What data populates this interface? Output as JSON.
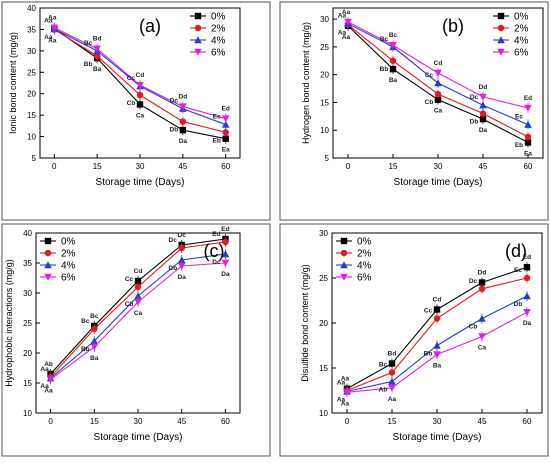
{
  "chart_data": [
    {
      "type": "line",
      "panel_label": "(a)",
      "xlabel": "Storage time (Days)",
      "ylabel": "Ionic bond content (mg/g)",
      "x": [
        0,
        15,
        30,
        45,
        60
      ],
      "xticks": [
        "0",
        "15",
        "30",
        "45",
        "60"
      ],
      "ylim": [
        5,
        40
      ],
      "yticks": [
        5,
        10,
        15,
        20,
        25,
        30,
        35,
        40
      ],
      "legend_position": "top-right",
      "series": [
        {
          "name": "0%",
          "values": [
            35.2,
            28.3,
            17.5,
            11.5,
            9.5
          ],
          "labels": [
            "Aa",
            "Ba",
            "Ca",
            "Da",
            "Ea"
          ]
        },
        {
          "name": "2%",
          "values": [
            35.0,
            28.8,
            19.7,
            13.5,
            11.0
          ],
          "labels": [
            "Aa",
            "Bb",
            "Cb",
            "Db",
            "Eb"
          ]
        },
        {
          "name": "4%",
          "values": [
            35.1,
            30.0,
            21.8,
            16.5,
            12.8
          ],
          "labels": [
            "Aa",
            "Bc",
            "Cc",
            "Dc",
            "Ec"
          ]
        },
        {
          "name": "6%",
          "values": [
            35.4,
            30.5,
            22.0,
            17.0,
            14.2
          ],
          "labels": [
            "Aa",
            "Bd",
            "Cd",
            "Dd",
            "Ed"
          ]
        }
      ]
    },
    {
      "type": "line",
      "panel_label": "(b)",
      "xlabel": "Storage time (Days)",
      "ylabel": "Hydrogen bond content (mg/g)",
      "x": [
        0,
        15,
        30,
        45,
        60
      ],
      "xticks": [
        "0",
        "15",
        "30",
        "45",
        "60"
      ],
      "ylim": [
        5,
        32
      ],
      "yticks": [
        5,
        10,
        15,
        20,
        25,
        30
      ],
      "legend_position": "top-right",
      "series": [
        {
          "name": "0%",
          "values": [
            28.8,
            21.0,
            15.5,
            12.0,
            7.8
          ],
          "labels": [
            "Aa",
            "Ba",
            "Ca",
            "Da",
            "Ea"
          ]
        },
        {
          "name": "2%",
          "values": [
            29.0,
            22.5,
            16.5,
            13.0,
            8.8
          ],
          "labels": [
            "Aa",
            "Bb",
            "Cb",
            "Db",
            "Eb"
          ]
        },
        {
          "name": "4%",
          "values": [
            29.2,
            25.0,
            18.5,
            14.5,
            11.0
          ],
          "labels": [
            "Aa",
            "Bc",
            "Cc",
            "Dc",
            "Ec"
          ]
        },
        {
          "name": "6%",
          "values": [
            29.5,
            25.3,
            20.3,
            16.0,
            14.0
          ],
          "labels": [
            "Aa",
            "Bc",
            "Cd",
            "Dd",
            "Ed"
          ]
        }
      ]
    },
    {
      "type": "line",
      "panel_label": "(c)",
      "xlabel": "Storage time (Days)",
      "ylabel": "Hydrophobic interactions (mg/g)",
      "x": [
        0,
        15,
        30,
        45,
        60
      ],
      "xticks": [
        "0",
        "15",
        "30",
        "45",
        "60"
      ],
      "ylim": [
        10,
        40
      ],
      "yticks": [
        10,
        15,
        20,
        25,
        30,
        35,
        40
      ],
      "legend_position": "top-left",
      "series": [
        {
          "name": "0%",
          "values": [
            16.5,
            24.5,
            32.0,
            38.0,
            39.0
          ],
          "labels": [
            "Ab",
            "Bc",
            "Cd",
            "Dc",
            "Ed"
          ]
        },
        {
          "name": "2%",
          "values": [
            16.0,
            24.0,
            31.0,
            37.5,
            38.5
          ],
          "labels": [
            "Aa",
            "Bc",
            "Cc",
            "Dc",
            "Ed"
          ]
        },
        {
          "name": "4%",
          "values": [
            15.8,
            22.0,
            29.5,
            35.5,
            36.5
          ],
          "labels": [
            "Aa",
            "Bb",
            "Cb",
            "Db",
            "Dc"
          ]
        },
        {
          "name": "6%",
          "values": [
            15.6,
            21.0,
            28.5,
            34.5,
            35.0
          ],
          "labels": [
            "Aa",
            "Ba",
            "Ca",
            "Da",
            "Da"
          ]
        }
      ]
    },
    {
      "type": "line",
      "panel_label": "(d)",
      "xlabel": "Storage time (Days)",
      "ylabel": "Disulfide bond content (mg/g)",
      "x": [
        0,
        15,
        30,
        45,
        60
      ],
      "xticks": [
        "0",
        "15",
        "30",
        "45",
        "60"
      ],
      "ylim": [
        10,
        30
      ],
      "yticks": [
        10,
        15,
        20,
        25,
        30
      ],
      "legend_position": "top-left",
      "series": [
        {
          "name": "0%",
          "values": [
            12.7,
            15.5,
            21.5,
            24.5,
            26.2
          ],
          "labels": [
            "Aa",
            "Bd",
            "Cd",
            "Dd",
            "Ed"
          ]
        },
        {
          "name": "2%",
          "values": [
            12.5,
            14.5,
            20.5,
            23.8,
            25.0
          ],
          "labels": [
            "Aa",
            "Bc",
            "Cc",
            "Dc",
            "Ec"
          ]
        },
        {
          "name": "4%",
          "values": [
            12.4,
            13.5,
            17.5,
            20.5,
            23.0
          ],
          "labels": [
            "Aa",
            "Ab",
            "Bb",
            "Cb",
            "Db"
          ]
        },
        {
          "name": "6%",
          "values": [
            12.3,
            12.8,
            16.5,
            18.5,
            21.2
          ],
          "labels": [
            "Aa",
            "Aa",
            "Ba",
            "Ca",
            "Da"
          ]
        }
      ]
    }
  ],
  "series_style": [
    {
      "color": "#000000",
      "marker": "square"
    },
    {
      "color": "#e41a1c",
      "marker": "circle"
    },
    {
      "color": "#1f3fd6",
      "marker": "triangle-up"
    },
    {
      "color": "#e01fe8",
      "marker": "triangle-down"
    }
  ]
}
